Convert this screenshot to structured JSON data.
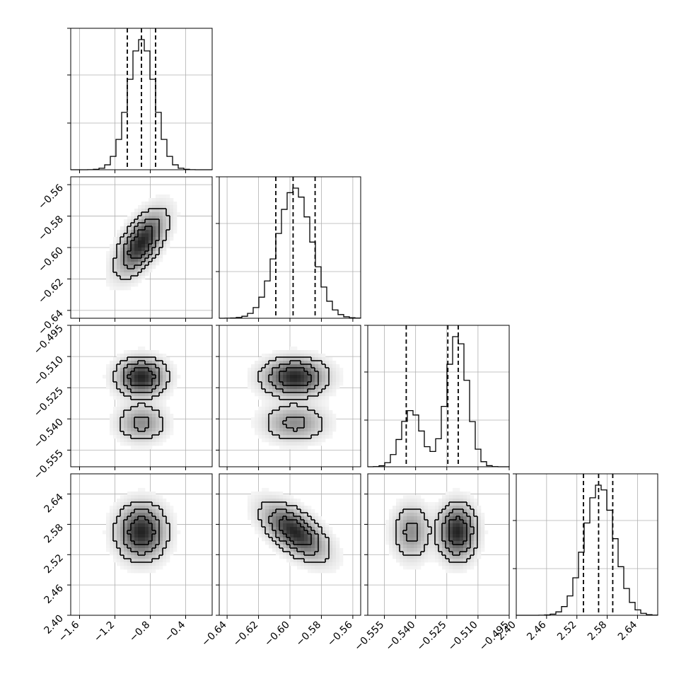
{
  "chart_data": {
    "type": "corner",
    "parameters": [
      {
        "range": [
          -1.7,
          -0.1
        ],
        "ticks": [
          -1.6,
          -1.2,
          -0.8,
          -0.4
        ],
        "tick_labels": [
          "−1.6",
          "−1.2",
          "−0.8",
          "−0.4"
        ],
        "mean": -0.9,
        "sd": 0.15,
        "quantiles": [
          -1.06,
          -0.9,
          -0.74
        ]
      },
      {
        "range": [
          -0.645,
          -0.555
        ],
        "ticks": [
          -0.64,
          -0.62,
          -0.6,
          -0.58,
          -0.56
        ],
        "tick_labels": [
          "−0.64",
          "−0.62",
          "−0.60",
          "−0.58",
          "−0.56"
        ],
        "mean": -0.597,
        "sd": 0.011,
        "quantiles": [
          -0.609,
          -0.598,
          -0.584
        ]
      },
      {
        "range": [
          -0.563,
          -0.495
        ],
        "ticks": [
          -0.555,
          -0.54,
          -0.525,
          -0.51,
          -0.495
        ],
        "tick_labels": [
          "−0.555",
          "−0.540",
          "−0.525",
          "−0.510",
          "−0.495"
        ],
        "mixture": [
          {
            "w": 0.3,
            "mean": -0.542,
            "sd": 0.005
          },
          {
            "w": 0.7,
            "mean": -0.52,
            "sd": 0.005
          }
        ],
        "quantiles": [
          -0.5445,
          -0.5245,
          -0.5195
        ]
      },
      {
        "range": [
          2.4,
          2.68
        ],
        "ticks": [
          2.4,
          2.46,
          2.52,
          2.58,
          2.64
        ],
        "tick_labels": [
          "2.40",
          "2.46",
          "2.52",
          "2.58",
          "2.64"
        ],
        "mean": 2.565,
        "sd": 0.03,
        "quantiles": [
          2.533,
          2.563,
          2.591
        ]
      }
    ],
    "grid": true,
    "quantile_lines": "dashed",
    "legend": "none"
  }
}
